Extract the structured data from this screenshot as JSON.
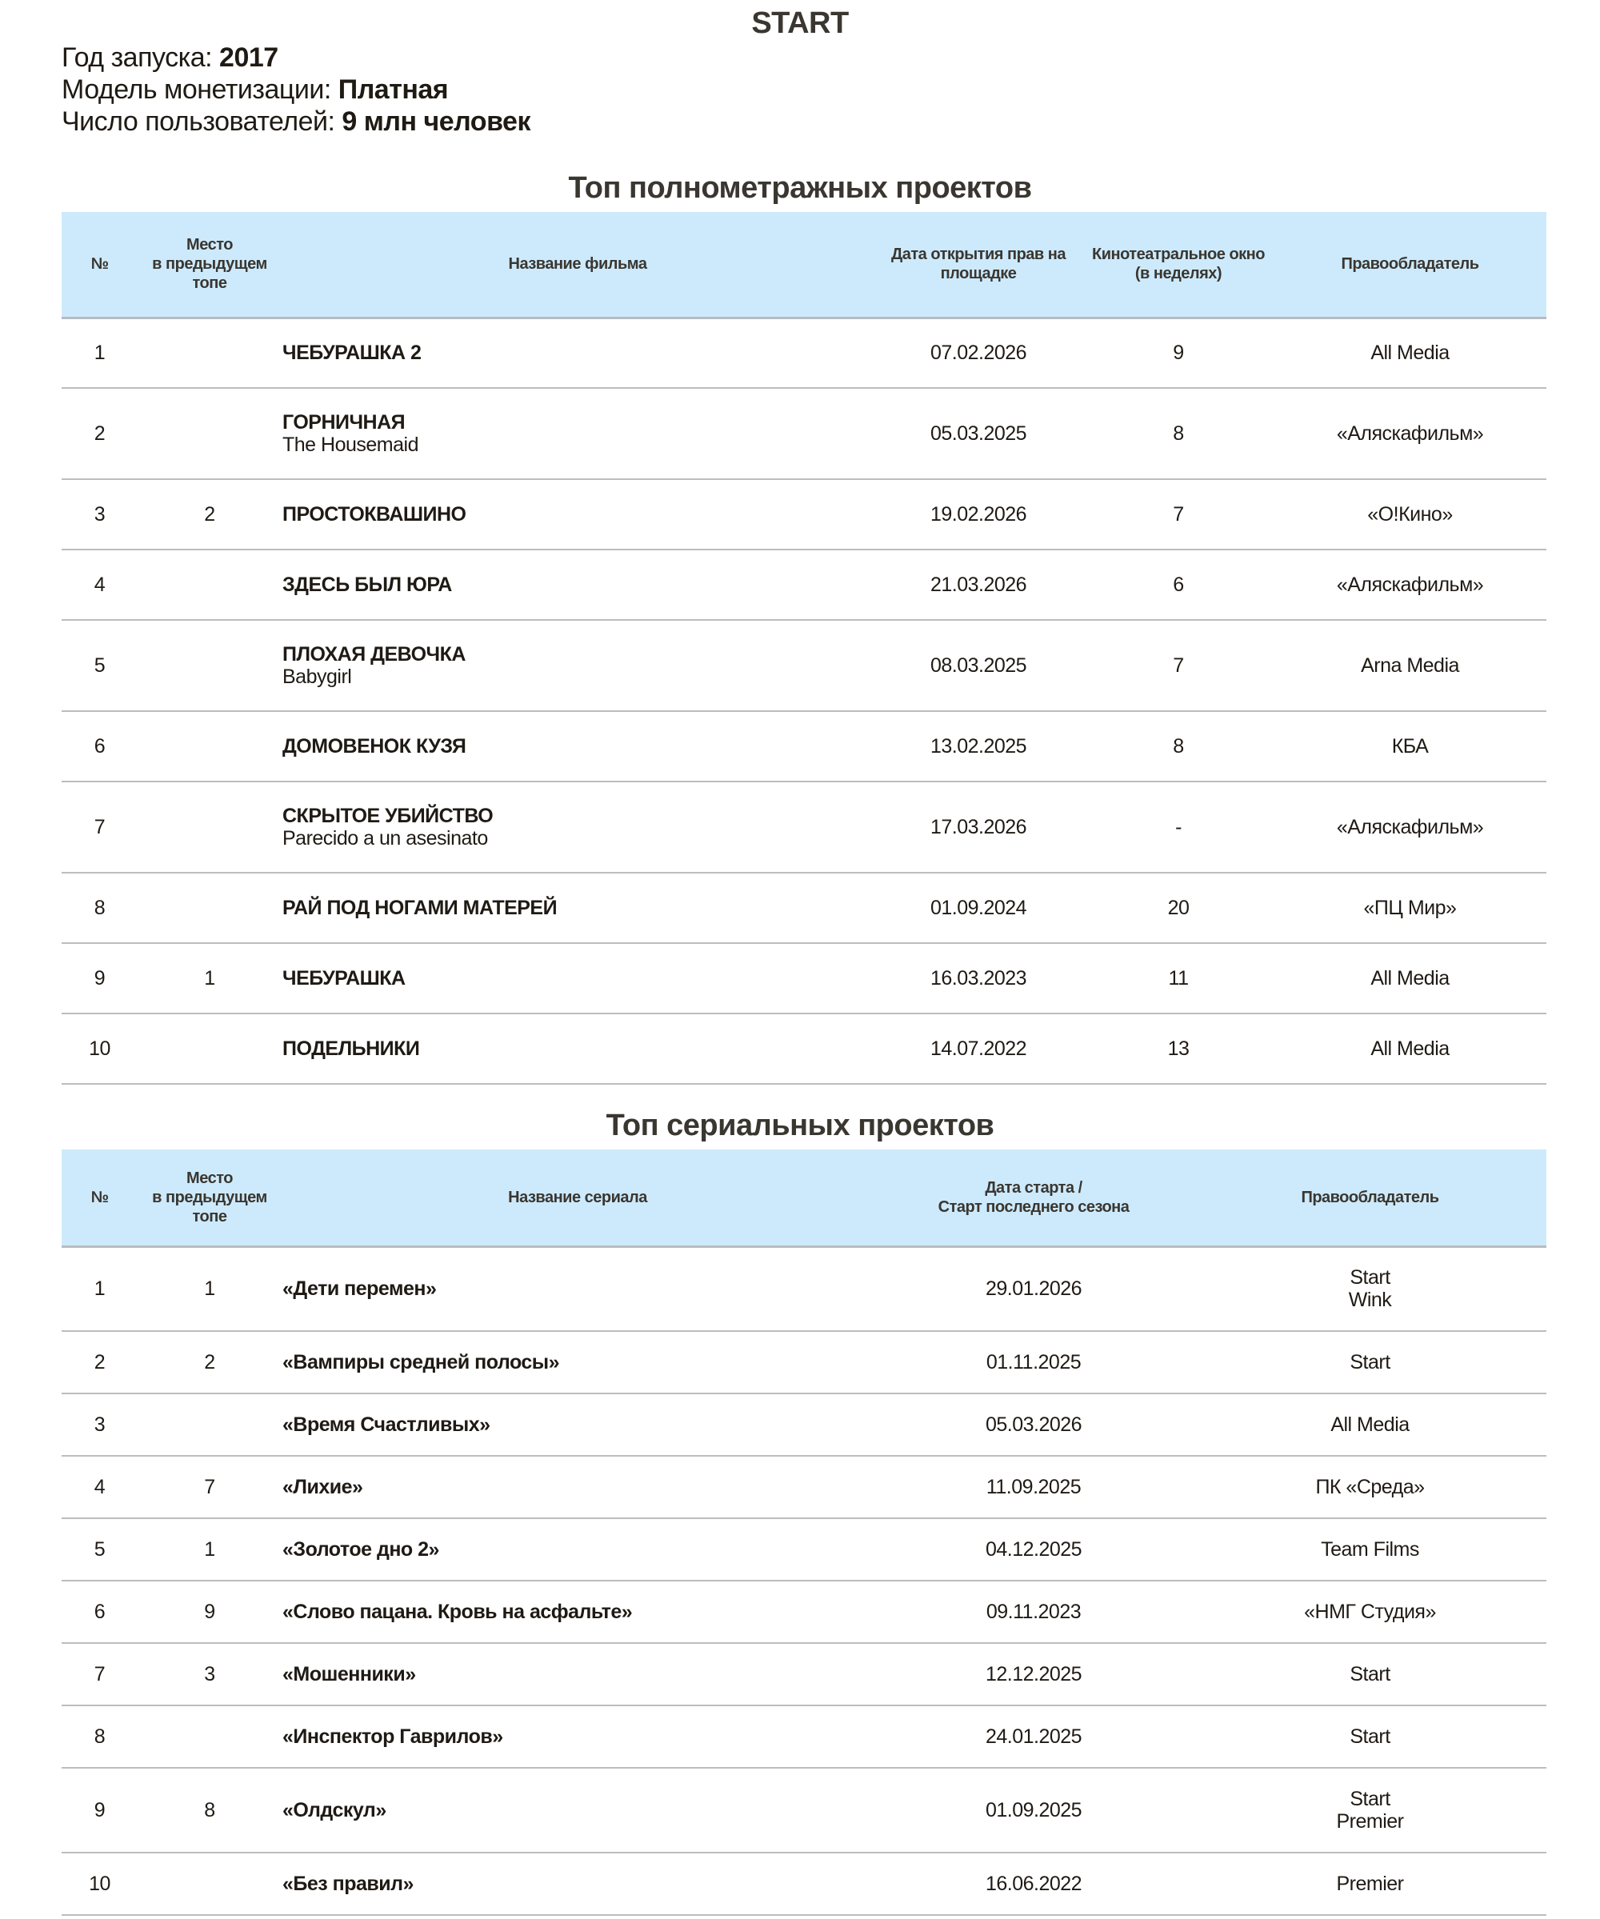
{
  "title": "START",
  "info": [
    {
      "label": "Год запуска: ",
      "value": "2017"
    },
    {
      "label": "Модель монетизации: ",
      "value": "Платная"
    },
    {
      "label": "Число пользователей: ",
      "value": "9 млн человек"
    }
  ],
  "films": {
    "title": "Топ полнометражных проектов",
    "headers": [
      "№",
      "Место\nв предыдущем\nтопе",
      "Название фильма",
      "Дата открытия прав на площадке",
      "Кинотеатральное окно (в неделях)",
      "Правообладатель"
    ],
    "rows": [
      {
        "n": "1",
        "prev": "",
        "title": "ЧЕБУРАШКА 2",
        "orig": "",
        "date": "07.02.2026",
        "window": "9",
        "owner": "All Media"
      },
      {
        "n": "2",
        "prev": "",
        "title": "ГОРНИЧНАЯ",
        "orig": "The Housemaid",
        "date": "05.03.2025",
        "window": "8",
        "owner": "«Аляскафильм»"
      },
      {
        "n": "3",
        "prev": "2",
        "title": "ПРОСТОКВАШИНО",
        "orig": "",
        "date": "19.02.2026",
        "window": "7",
        "owner": "«О!Кино»"
      },
      {
        "n": "4",
        "prev": "",
        "title": "ЗДЕСЬ БЫЛ ЮРА",
        "orig": "",
        "date": "21.03.2026",
        "window": "6",
        "owner": "«Аляскафильм»"
      },
      {
        "n": "5",
        "prev": "",
        "title": "ПЛОХАЯ ДЕВОЧКА",
        "orig": "Babygirl",
        "date": "08.03.2025",
        "window": "7",
        "owner": "Arna Media"
      },
      {
        "n": "6",
        "prev": "",
        "title": "ДОМОВЕНОК КУЗЯ",
        "orig": "",
        "date": "13.02.2025",
        "window": "8",
        "owner": "КБА"
      },
      {
        "n": "7",
        "prev": "",
        "title": "СКРЫТОЕ УБИЙСТВО",
        "orig": "Parecido a un asesinato",
        "date": "17.03.2026",
        "window": "-",
        "owner": "«Аляскафильм»"
      },
      {
        "n": "8",
        "prev": "",
        "title": "РАЙ ПОД НОГАМИ МАТЕРЕЙ",
        "orig": "",
        "date": "01.09.2024",
        "window": "20",
        "owner": "«ПЦ Мир»"
      },
      {
        "n": "9",
        "prev": "1",
        "title": "ЧЕБУРАШКА",
        "orig": "",
        "date": "16.03.2023",
        "window": "11",
        "owner": "All Media"
      },
      {
        "n": "10",
        "prev": "",
        "title": "ПОДЕЛЬНИКИ",
        "orig": "",
        "date": "14.07.2022",
        "window": "13",
        "owner": "All Media"
      }
    ]
  },
  "series": {
    "title": "Топ сериальных проектов",
    "headers": [
      "№",
      "Место\nв предыдущем\nтопе",
      "Название сериала",
      "Дата старта /\nСтарт последнего сезона",
      "Правообладатель"
    ],
    "rows": [
      {
        "n": "1",
        "prev": "1",
        "title": "«Дети перемен»",
        "date": "29.01.2026",
        "owner": "Start\nWink"
      },
      {
        "n": "2",
        "prev": "2",
        "title": "«Вампиры средней полосы»",
        "date": "01.11.2025",
        "owner": "Start"
      },
      {
        "n": "3",
        "prev": "",
        "title": "«Время Счастливых»",
        "date": "05.03.2026",
        "owner": "All Media"
      },
      {
        "n": "4",
        "prev": "7",
        "title": "«Лихие»",
        "date": "11.09.2025",
        "owner": "ПК «Среда»"
      },
      {
        "n": "5",
        "prev": "1",
        "title": "«Золотое дно 2»",
        "date": "04.12.2025",
        "owner": "Team Films"
      },
      {
        "n": "6",
        "prev": "9",
        "title": "«Слово пацана. Кровь на асфальте»",
        "date": "09.11.2023",
        "owner": "«НМГ Студия»"
      },
      {
        "n": "7",
        "prev": "3",
        "title": "«Мошенники»",
        "date": "12.12.2025",
        "owner": "Start"
      },
      {
        "n": "8",
        "prev": "",
        "title": "«Инспектор Гаврилов»",
        "date": "24.01.2025",
        "owner": "Start"
      },
      {
        "n": "9",
        "prev": "8",
        "title": "«Олдскул»",
        "date": "01.09.2025",
        "owner": "Start\nPremier"
      },
      {
        "n": "10",
        "prev": "",
        "title": "«Без правил»",
        "date": "16.06.2022",
        "owner": "Premier"
      }
    ]
  },
  "colors": {
    "header_bg": "#cdeafd",
    "text": "#1f1a14",
    "rule": "#bdbdbd"
  }
}
